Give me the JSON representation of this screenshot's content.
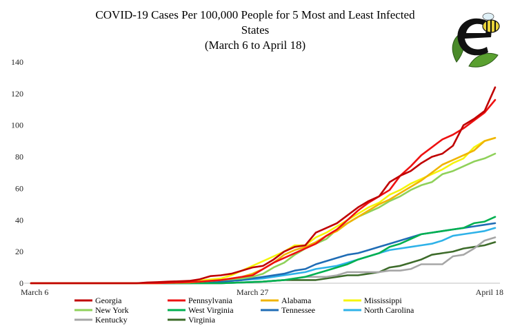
{
  "chart_data": {
    "type": "line",
    "title_lines": [
      "COVID-19 Cases Per 100,000 People for 5 Most and Least Infected",
      "States",
      "(March 6 to April 18)"
    ],
    "x_tick_labels": [
      {
        "day": 0,
        "label": "March 6"
      },
      {
        "day": 21,
        "label": "March 27"
      },
      {
        "day": 43,
        "label": "April 18"
      }
    ],
    "x_range": [
      0,
      43
    ],
    "ylim": [
      0,
      140
    ],
    "y_ticks": [
      "0",
      "20",
      "40",
      "60",
      "80",
      "100",
      "120",
      "140"
    ],
    "grid": false,
    "legend_position": "bottom",
    "series": [
      {
        "name": "Georgia",
        "color": "#c00000",
        "points": [
          [
            0,
            0
          ],
          [
            10,
            0
          ],
          [
            11,
            0.5
          ],
          [
            12,
            0.7
          ],
          [
            13,
            1
          ],
          [
            14,
            1.2
          ],
          [
            15,
            1.5
          ],
          [
            16,
            2.5
          ],
          [
            17,
            4.5
          ],
          [
            18,
            5
          ],
          [
            19,
            6
          ],
          [
            20,
            8
          ],
          [
            21,
            10
          ],
          [
            22,
            11
          ],
          [
            23,
            15
          ],
          [
            24,
            20
          ],
          [
            25,
            23
          ],
          [
            26,
            24
          ],
          [
            27,
            32
          ],
          [
            28,
            35
          ],
          [
            29,
            38
          ],
          [
            30,
            43
          ],
          [
            31,
            48
          ],
          [
            32,
            52
          ],
          [
            33,
            55
          ],
          [
            34,
            64
          ],
          [
            35,
            68
          ],
          [
            36,
            71
          ],
          [
            37,
            76
          ],
          [
            38,
            80
          ],
          [
            39,
            82
          ],
          [
            40,
            87
          ],
          [
            41,
            100
          ],
          [
            42,
            104
          ],
          [
            43,
            109
          ],
          [
            44,
            124
          ]
        ]
      },
      {
        "name": "Pennsylvania",
        "color": "#ee1111",
        "points": [
          [
            0,
            0
          ],
          [
            12,
            0
          ],
          [
            14,
            0.5
          ],
          [
            16,
            1
          ],
          [
            18,
            2
          ],
          [
            19,
            3
          ],
          [
            20,
            4
          ],
          [
            21,
            5
          ],
          [
            22,
            9
          ],
          [
            23,
            13
          ],
          [
            24,
            16
          ],
          [
            25,
            19
          ],
          [
            26,
            22
          ],
          [
            27,
            25
          ],
          [
            28,
            30
          ],
          [
            29,
            34
          ],
          [
            30,
            40
          ],
          [
            31,
            46
          ],
          [
            32,
            51
          ],
          [
            33,
            55
          ],
          [
            34,
            59
          ],
          [
            35,
            68
          ],
          [
            36,
            74
          ],
          [
            37,
            81
          ],
          [
            38,
            86
          ],
          [
            39,
            91
          ],
          [
            40,
            94
          ],
          [
            41,
            98
          ],
          [
            42,
            103
          ],
          [
            43,
            108
          ],
          [
            44,
            116
          ]
        ]
      },
      {
        "name": "Alabama",
        "color": "#f0b400",
        "points": [
          [
            0,
            0
          ],
          [
            12,
            0
          ],
          [
            15,
            0.5
          ],
          [
            18,
            2
          ],
          [
            20,
            4
          ],
          [
            21,
            6
          ],
          [
            22,
            9
          ],
          [
            23,
            13
          ],
          [
            24,
            18
          ],
          [
            25,
            21
          ],
          [
            26,
            23
          ],
          [
            27,
            26
          ],
          [
            28,
            30
          ],
          [
            29,
            33
          ],
          [
            30,
            38
          ],
          [
            31,
            42
          ],
          [
            32,
            46
          ],
          [
            33,
            50
          ],
          [
            34,
            53
          ],
          [
            35,
            57
          ],
          [
            36,
            61
          ],
          [
            37,
            65
          ],
          [
            38,
            70
          ],
          [
            39,
            75
          ],
          [
            40,
            78
          ],
          [
            41,
            81
          ],
          [
            42,
            84
          ],
          [
            43,
            90
          ],
          [
            44,
            92
          ]
        ]
      },
      {
        "name": "Mississippi",
        "color": "#f5f50a",
        "points": [
          [
            0,
            0
          ],
          [
            12,
            0
          ],
          [
            15,
            1
          ],
          [
            18,
            3
          ],
          [
            19,
            5
          ],
          [
            20,
            8
          ],
          [
            21,
            11
          ],
          [
            22,
            14
          ],
          [
            23,
            17
          ],
          [
            24,
            20
          ],
          [
            25,
            24
          ],
          [
            26,
            24
          ],
          [
            27,
            29
          ],
          [
            28,
            32
          ],
          [
            29,
            36
          ],
          [
            30,
            40
          ],
          [
            31,
            44
          ],
          [
            32,
            48
          ],
          [
            33,
            51
          ],
          [
            34,
            56
          ],
          [
            35,
            59
          ],
          [
            36,
            63
          ],
          [
            37,
            66
          ],
          [
            38,
            69
          ],
          [
            39,
            72
          ],
          [
            40,
            76
          ],
          [
            41,
            79
          ],
          [
            42,
            86
          ],
          [
            43,
            90
          ],
          [
            44,
            92
          ]
        ]
      },
      {
        "name": "New York",
        "color": "#8fd15a",
        "points": [
          [
            0,
            0
          ],
          [
            12,
            0
          ],
          [
            15,
            0.5
          ],
          [
            18,
            2
          ],
          [
            20,
            3
          ],
          [
            21,
            4
          ],
          [
            22,
            6
          ],
          [
            23,
            10
          ],
          [
            24,
            13
          ],
          [
            25,
            18
          ],
          [
            26,
            22
          ],
          [
            27,
            25
          ],
          [
            28,
            28
          ],
          [
            29,
            34
          ],
          [
            30,
            38
          ],
          [
            31,
            42
          ],
          [
            32,
            45
          ],
          [
            33,
            48
          ],
          [
            34,
            52
          ],
          [
            35,
            55
          ],
          [
            36,
            59
          ],
          [
            37,
            62
          ],
          [
            38,
            64
          ],
          [
            39,
            69
          ],
          [
            40,
            71
          ],
          [
            41,
            74
          ],
          [
            42,
            77
          ],
          [
            43,
            79
          ],
          [
            44,
            82
          ]
        ]
      },
      {
        "name": "West Virginia",
        "color": "#00b050",
        "points": [
          [
            0,
            0
          ],
          [
            18,
            0
          ],
          [
            20,
            0.5
          ],
          [
            22,
            1
          ],
          [
            24,
            2
          ],
          [
            26,
            4
          ],
          [
            28,
            8
          ],
          [
            29,
            10
          ],
          [
            30,
            12
          ],
          [
            31,
            15
          ],
          [
            32,
            17
          ],
          [
            33,
            19
          ],
          [
            34,
            23
          ],
          [
            35,
            25
          ],
          [
            36,
            28
          ],
          [
            37,
            31
          ],
          [
            38,
            32
          ],
          [
            39,
            33
          ],
          [
            40,
            34
          ],
          [
            41,
            35
          ],
          [
            42,
            38
          ],
          [
            43,
            39
          ],
          [
            44,
            42
          ]
        ]
      },
      {
        "name": "Tennessee",
        "color": "#1f6cb5",
        "points": [
          [
            0,
            0
          ],
          [
            15,
            0
          ],
          [
            18,
            1
          ],
          [
            20,
            2
          ],
          [
            22,
            4
          ],
          [
            24,
            6
          ],
          [
            25,
            8
          ],
          [
            26,
            9
          ],
          [
            27,
            12
          ],
          [
            28,
            14
          ],
          [
            29,
            16
          ],
          [
            30,
            18
          ],
          [
            31,
            19
          ],
          [
            32,
            21
          ],
          [
            33,
            23
          ],
          [
            34,
            25
          ],
          [
            35,
            27
          ],
          [
            36,
            29
          ],
          [
            37,
            31
          ],
          [
            38,
            32
          ],
          [
            39,
            33
          ],
          [
            40,
            34
          ],
          [
            41,
            35
          ],
          [
            42,
            36
          ],
          [
            43,
            37
          ],
          [
            44,
            38
          ]
        ]
      },
      {
        "name": "North Carolina",
        "color": "#2eb2e8",
        "points": [
          [
            0,
            0
          ],
          [
            15,
            0
          ],
          [
            18,
            1
          ],
          [
            20,
            2
          ],
          [
            22,
            3
          ],
          [
            24,
            5
          ],
          [
            25,
            6
          ],
          [
            26,
            7
          ],
          [
            27,
            9
          ],
          [
            28,
            10
          ],
          [
            29,
            11
          ],
          [
            30,
            13
          ],
          [
            31,
            15
          ],
          [
            32,
            17
          ],
          [
            33,
            19
          ],
          [
            34,
            21
          ],
          [
            35,
            22
          ],
          [
            36,
            23
          ],
          [
            37,
            24
          ],
          [
            38,
            25
          ],
          [
            39,
            27
          ],
          [
            40,
            30
          ],
          [
            41,
            31
          ],
          [
            42,
            32
          ],
          [
            43,
            33
          ],
          [
            44,
            35
          ]
        ]
      },
      {
        "name": "Kentucky",
        "color": "#a6a6a6",
        "points": [
          [
            0,
            0
          ],
          [
            18,
            0
          ],
          [
            20,
            0.5
          ],
          [
            22,
            1
          ],
          [
            24,
            2
          ],
          [
            25,
            3
          ],
          [
            26,
            4
          ],
          [
            27,
            4
          ],
          [
            28,
            4
          ],
          [
            29,
            5
          ],
          [
            30,
            7
          ],
          [
            31,
            7
          ],
          [
            32,
            7
          ],
          [
            33,
            7
          ],
          [
            34,
            8
          ],
          [
            35,
            8
          ],
          [
            36,
            9
          ],
          [
            37,
            12
          ],
          [
            38,
            12
          ],
          [
            39,
            12
          ],
          [
            40,
            17
          ],
          [
            41,
            18
          ],
          [
            42,
            22
          ],
          [
            43,
            27
          ],
          [
            44,
            29
          ]
        ]
      },
      {
        "name": "Virginia",
        "color": "#3d6b2a",
        "points": [
          [
            0,
            0
          ],
          [
            18,
            0
          ],
          [
            20,
            0.5
          ],
          [
            22,
            1
          ],
          [
            24,
            2
          ],
          [
            25,
            2
          ],
          [
            26,
            2
          ],
          [
            27,
            2
          ],
          [
            28,
            3
          ],
          [
            29,
            4
          ],
          [
            30,
            5
          ],
          [
            31,
            5
          ],
          [
            32,
            6
          ],
          [
            33,
            7
          ],
          [
            34,
            10
          ],
          [
            35,
            11
          ],
          [
            36,
            13
          ],
          [
            37,
            15
          ],
          [
            38,
            18
          ],
          [
            39,
            19
          ],
          [
            40,
            20
          ],
          [
            41,
            22
          ],
          [
            42,
            23
          ],
          [
            43,
            24
          ],
          [
            44,
            26
          ]
        ]
      }
    ]
  }
}
